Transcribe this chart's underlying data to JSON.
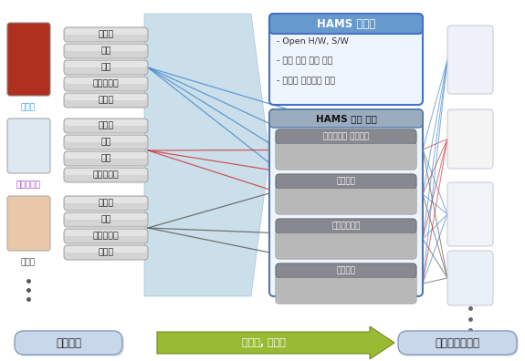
{
  "platform_title": "HAMS 플랫폼",
  "platform_bullets": [
    "- Open H/W, S/W",
    "- 모듈 최적 제어 기술",
    "- 스마트 에어제어 기술"
  ],
  "hams_module_title": "HAMS 응용 모듈",
  "modules": [
    "신소재기반 필터모듈",
    "센서모듈",
    "공기순환모듈",
    "압축모듈"
  ],
  "left_groups": [
    {
      "label": "에어컨",
      "label_color": "#3399FF",
      "items": [
        "제어기",
        "필터",
        "센서",
        "공기순환기",
        "압축기"
      ]
    },
    {
      "label": "공기청정기",
      "label_color": "#9933CC",
      "items": [
        "제어기",
        "필터",
        "센서",
        "공기순환기"
      ]
    },
    {
      "label": "제습기",
      "label_color": "#444444",
      "items": [
        "제어기",
        "센서",
        "공기순환기",
        "압축기"
      ]
    }
  ],
  "bottom_label_left": "에어가전",
  "bottom_label_mid": "모듈화, 표준화",
  "bottom_label_right": "모듈형에어가전",
  "line_colors_groups": [
    "#4488cc",
    "#cc3333",
    "#555555"
  ],
  "line_colors_right": "#6688bb",
  "platform_header_fc": "#6699cc",
  "platform_border": "#4472C4",
  "platform_body_fc": "#eef5ff",
  "mod_header_fc": "#9aacbe",
  "mod_border": "#5577aa",
  "mod_body_fc": "#eef5ff",
  "mod_item_header_fc": "#888890",
  "mod_item_body_fc": "#c8c8c8",
  "mod_item_border": "#999999",
  "btn_fc": "#c8d8ea",
  "btn_ec": "#8899bb",
  "btn_shadow": "#aabbcc",
  "big_arrow_fc": "#b0cfe0",
  "big_arrow_ec": "#88b0c8",
  "green_arrow_fc": "#99bb33",
  "green_arrow_ec": "#778822",
  "box_fc": "#d4d4d4",
  "box_ec": "#aaaaaa",
  "box_hi_fc": "#eeeeee"
}
